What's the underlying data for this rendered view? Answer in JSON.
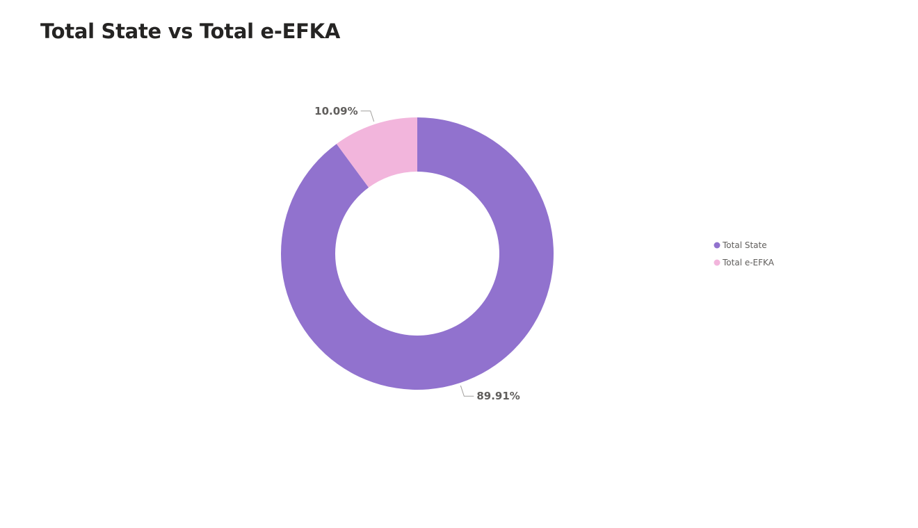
{
  "chart_data": {
    "type": "pie",
    "donut": true,
    "title": "Total State vs Total e-EFKA",
    "categories": [
      "Total State",
      "Total e-EFKA"
    ],
    "values": [
      89.91,
      10.09
    ],
    "data_labels": [
      "89.91%",
      "10.09%"
    ],
    "colors": [
      "#9172CE",
      "#F2B5DC"
    ],
    "legend": {
      "position": "right",
      "entries": [
        "Total State",
        "Total e-EFKA"
      ]
    }
  }
}
